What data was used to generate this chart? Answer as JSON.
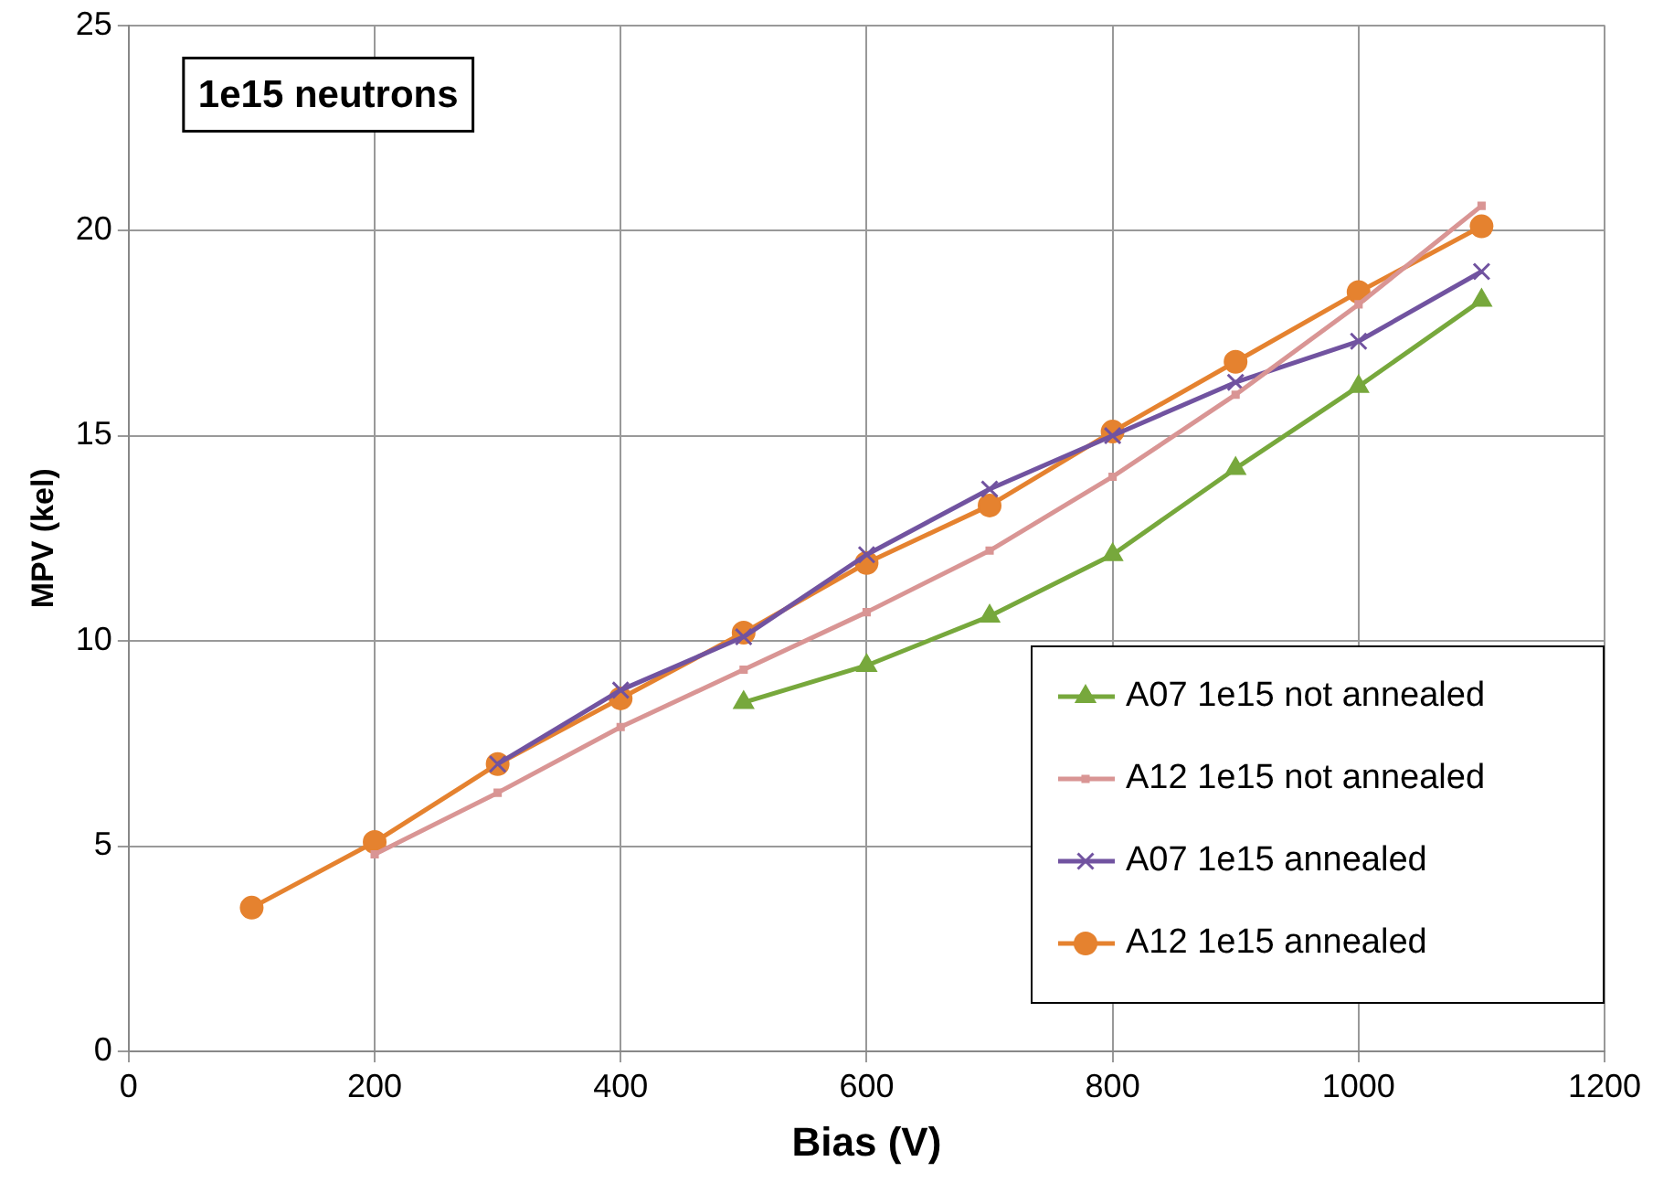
{
  "chart_data": {
    "type": "line",
    "title": "1e15 neutrons",
    "xlabel": "Bias (V)",
    "ylabel": "MPV (kel)",
    "xlim": [
      0,
      1200
    ],
    "xticks": [
      0,
      200,
      400,
      600,
      800,
      1000,
      1200
    ],
    "ylim": [
      0,
      25
    ],
    "yticks": [
      0,
      5,
      10,
      15,
      20,
      25
    ],
    "grid": true,
    "legend": "bottom right",
    "line_style": "solid",
    "series": [
      {
        "name": "A07 1e15 not annealed",
        "color": "#77a83c",
        "marker": "triangle",
        "x": [
          500,
          600,
          700,
          800,
          900,
          1000,
          1100
        ],
        "values": [
          8.5,
          9.4,
          10.6,
          12.1,
          14.2,
          16.2,
          18.3
        ]
      },
      {
        "name": "A12 1e15 not annealed",
        "color": "#d99594",
        "marker": "square",
        "x": [
          200,
          300,
          400,
          500,
          600,
          700,
          800,
          900,
          1000,
          1100
        ],
        "values": [
          4.8,
          6.3,
          7.9,
          9.3,
          10.7,
          12.2,
          14.0,
          16.0,
          18.2,
          20.6
        ]
      },
      {
        "name": "A07 1e15 annealed",
        "color": "#7153a0",
        "marker": "cross",
        "x": [
          300,
          400,
          500,
          600,
          700,
          800,
          900,
          1000,
          1100
        ],
        "values": [
          7.0,
          8.8,
          10.1,
          12.1,
          13.7,
          15.0,
          16.3,
          17.3,
          19.0
        ]
      },
      {
        "name": "A12 1e15 annealed",
        "color": "#e5822f",
        "marker": "circle",
        "x": [
          100,
          200,
          300,
          400,
          500,
          600,
          700,
          800,
          900,
          1000,
          1100
        ],
        "values": [
          3.5,
          5.1,
          7.0,
          8.6,
          10.2,
          11.9,
          13.3,
          15.1,
          16.8,
          18.5,
          20.1
        ]
      }
    ]
  }
}
